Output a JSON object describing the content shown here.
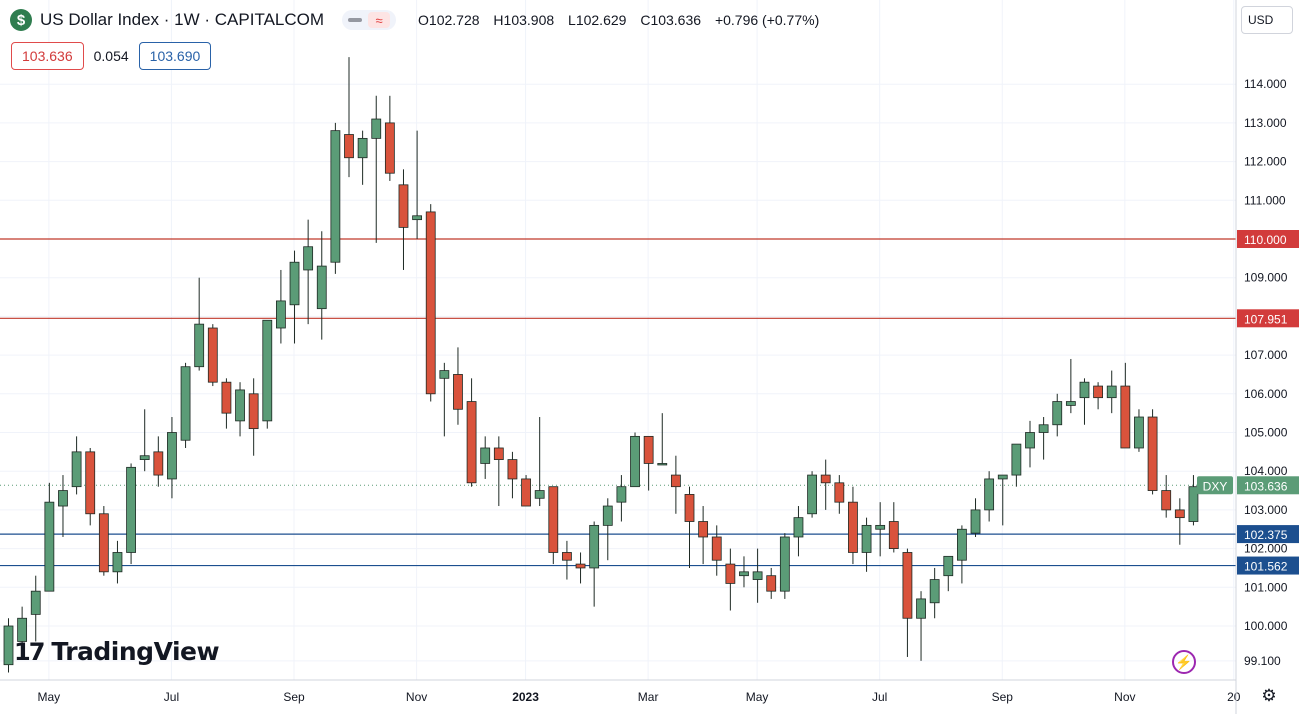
{
  "header": {
    "badge": "$",
    "title": "US Dollar Index · 1W · CAPITALCOM",
    "pill_wave": "≈",
    "ohlc": {
      "o": "O102.728",
      "h": "H103.908",
      "l": "L102.629",
      "c": "C103.636",
      "chg": "+0.796 (+0.77%)"
    }
  },
  "subheader": {
    "sell": "103.636",
    "spread": "0.054",
    "buy": "103.690"
  },
  "scale_currency": "USD",
  "logo": {
    "mark": "17",
    "name": "TradingView"
  },
  "colors": {
    "up": "#5b9c77",
    "down": "#d9533c",
    "red_line": "#c0392b",
    "blue_line": "#1c4f8f",
    "current": "#5b9c77"
  },
  "icons": {
    "bolt": "⚡",
    "gear": "⚙"
  },
  "chart_data": {
    "type": "candlestick",
    "title": "",
    "xlabel": "",
    "ylabel": "",
    "ylim": [
      98.8,
      115.1
    ],
    "y_ticks": [
      "99.100",
      "100.000",
      "101.000",
      "102.000",
      "103.000",
      "104.000",
      "105.000",
      "106.000",
      "107.000",
      "108.000",
      "109.000",
      "110.000",
      "111.000",
      "112.000",
      "113.000",
      "114.000"
    ],
    "x_ticks": [
      {
        "label": "May",
        "index": 3
      },
      {
        "label": "Jul",
        "index": 12
      },
      {
        "label": "Sep",
        "index": 21
      },
      {
        "label": "Nov",
        "index": 30
      },
      {
        "label": "2023",
        "index": 38,
        "bold": true
      },
      {
        "label": "Mar",
        "index": 47
      },
      {
        "label": "May",
        "index": 55
      },
      {
        "label": "Jul",
        "index": 64
      },
      {
        "label": "Sep",
        "index": 73
      },
      {
        "label": "Nov",
        "index": 82
      },
      {
        "label": "20",
        "index": 90
      }
    ],
    "candles": [
      {
        "o": 99.0,
        "h": 100.2,
        "l": 98.8,
        "c": 100.0
      },
      {
        "o": 99.6,
        "h": 100.5,
        "l": 99.2,
        "c": 100.2
      },
      {
        "o": 100.3,
        "h": 101.3,
        "l": 99.6,
        "c": 100.9
      },
      {
        "o": 100.9,
        "h": 103.7,
        "l": 100.9,
        "c": 103.2
      },
      {
        "o": 103.1,
        "h": 103.9,
        "l": 102.3,
        "c": 103.5
      },
      {
        "o": 103.6,
        "h": 104.9,
        "l": 103.4,
        "c": 104.5
      },
      {
        "o": 104.5,
        "h": 104.6,
        "l": 102.6,
        "c": 102.9
      },
      {
        "o": 102.9,
        "h": 103.1,
        "l": 101.3,
        "c": 101.4
      },
      {
        "o": 101.4,
        "h": 102.2,
        "l": 101.1,
        "c": 101.9
      },
      {
        "o": 101.9,
        "h": 104.2,
        "l": 101.6,
        "c": 104.1
      },
      {
        "o": 104.3,
        "h": 105.6,
        "l": 104.0,
        "c": 104.4
      },
      {
        "o": 104.5,
        "h": 104.9,
        "l": 103.6,
        "c": 103.9
      },
      {
        "o": 103.8,
        "h": 105.4,
        "l": 103.3,
        "c": 105.0
      },
      {
        "o": 104.8,
        "h": 106.8,
        "l": 104.6,
        "c": 106.7
      },
      {
        "o": 106.7,
        "h": 109.0,
        "l": 106.6,
        "c": 107.8
      },
      {
        "o": 107.7,
        "h": 107.8,
        "l": 106.2,
        "c": 106.3
      },
      {
        "o": 106.3,
        "h": 106.4,
        "l": 105.1,
        "c": 105.5
      },
      {
        "o": 105.3,
        "h": 106.3,
        "l": 104.9,
        "c": 106.1
      },
      {
        "o": 106.0,
        "h": 106.4,
        "l": 104.4,
        "c": 105.1
      },
      {
        "o": 105.3,
        "h": 107.9,
        "l": 105.1,
        "c": 107.9
      },
      {
        "o": 107.7,
        "h": 109.2,
        "l": 107.3,
        "c": 108.4
      },
      {
        "o": 108.3,
        "h": 109.7,
        "l": 107.3,
        "c": 109.4
      },
      {
        "o": 109.2,
        "h": 110.5,
        "l": 107.8,
        "c": 109.8
      },
      {
        "o": 108.2,
        "h": 110.2,
        "l": 107.4,
        "c": 109.3
      },
      {
        "o": 109.4,
        "h": 113.0,
        "l": 109.1,
        "c": 112.8
      },
      {
        "o": 112.7,
        "h": 114.7,
        "l": 111.6,
        "c": 112.1
      },
      {
        "o": 112.1,
        "h": 112.8,
        "l": 111.4,
        "c": 112.6
      },
      {
        "o": 112.6,
        "h": 113.7,
        "l": 109.9,
        "c": 113.1
      },
      {
        "o": 113.0,
        "h": 113.7,
        "l": 111.5,
        "c": 111.7
      },
      {
        "o": 111.4,
        "h": 111.8,
        "l": 109.2,
        "c": 110.3
      },
      {
        "o": 110.5,
        "h": 112.8,
        "l": 110.0,
        "c": 110.6
      },
      {
        "o": 110.7,
        "h": 110.9,
        "l": 105.8,
        "c": 106.0
      },
      {
        "o": 106.4,
        "h": 106.8,
        "l": 104.9,
        "c": 106.6
      },
      {
        "o": 106.5,
        "h": 107.2,
        "l": 105.2,
        "c": 105.6
      },
      {
        "o": 105.8,
        "h": 106.4,
        "l": 103.6,
        "c": 103.7
      },
      {
        "o": 104.2,
        "h": 104.9,
        "l": 103.8,
        "c": 104.6
      },
      {
        "o": 104.6,
        "h": 104.9,
        "l": 103.1,
        "c": 104.3
      },
      {
        "o": 104.3,
        "h": 104.5,
        "l": 103.3,
        "c": 103.8
      },
      {
        "o": 103.8,
        "h": 103.9,
        "l": 103.1,
        "c": 103.1
      },
      {
        "o": 103.3,
        "h": 105.4,
        "l": 103.1,
        "c": 103.5
      },
      {
        "o": 103.6,
        "h": 103.6,
        "l": 101.6,
        "c": 101.9
      },
      {
        "o": 101.9,
        "h": 102.2,
        "l": 101.2,
        "c": 101.7
      },
      {
        "o": 101.6,
        "h": 101.9,
        "l": 101.1,
        "c": 101.5
      },
      {
        "o": 101.5,
        "h": 102.7,
        "l": 100.5,
        "c": 102.6
      },
      {
        "o": 102.6,
        "h": 103.3,
        "l": 101.7,
        "c": 103.1
      },
      {
        "o": 103.2,
        "h": 103.9,
        "l": 102.7,
        "c": 103.6
      },
      {
        "o": 103.6,
        "h": 105.0,
        "l": 103.6,
        "c": 104.9
      },
      {
        "o": 104.9,
        "h": 104.9,
        "l": 103.5,
        "c": 104.2
      },
      {
        "o": 104.2,
        "h": 105.5,
        "l": 104.2,
        "c": 104.2
      },
      {
        "o": 103.9,
        "h": 104.4,
        "l": 102.9,
        "c": 103.6
      },
      {
        "o": 103.4,
        "h": 103.6,
        "l": 101.5,
        "c": 102.7
      },
      {
        "o": 102.7,
        "h": 103.1,
        "l": 101.6,
        "c": 102.3
      },
      {
        "o": 102.3,
        "h": 102.6,
        "l": 101.3,
        "c": 101.7
      },
      {
        "o": 101.6,
        "h": 102.0,
        "l": 100.4,
        "c": 101.1
      },
      {
        "o": 101.3,
        "h": 101.8,
        "l": 101.0,
        "c": 101.4
      },
      {
        "o": 101.2,
        "h": 102.0,
        "l": 100.6,
        "c": 101.4
      },
      {
        "o": 101.3,
        "h": 101.5,
        "l": 100.7,
        "c": 100.9
      },
      {
        "o": 100.9,
        "h": 102.4,
        "l": 100.7,
        "c": 102.3
      },
      {
        "o": 102.3,
        "h": 103.1,
        "l": 101.8,
        "c": 102.8
      },
      {
        "o": 102.9,
        "h": 104.0,
        "l": 102.8,
        "c": 103.9
      },
      {
        "o": 103.9,
        "h": 104.3,
        "l": 103.0,
        "c": 103.7
      },
      {
        "o": 103.7,
        "h": 103.9,
        "l": 102.9,
        "c": 103.2
      },
      {
        "o": 103.2,
        "h": 103.6,
        "l": 101.6,
        "c": 101.9
      },
      {
        "o": 101.9,
        "h": 102.8,
        "l": 101.4,
        "c": 102.6
      },
      {
        "o": 102.5,
        "h": 103.2,
        "l": 101.8,
        "c": 102.6
      },
      {
        "o": 102.7,
        "h": 103.2,
        "l": 101.9,
        "c": 102.0
      },
      {
        "o": 101.9,
        "h": 102.0,
        "l": 99.2,
        "c": 100.2
      },
      {
        "o": 100.2,
        "h": 100.9,
        "l": 99.1,
        "c": 100.7
      },
      {
        "o": 100.6,
        "h": 101.5,
        "l": 100.2,
        "c": 101.2
      },
      {
        "o": 101.3,
        "h": 101.8,
        "l": 100.9,
        "c": 101.8
      },
      {
        "o": 101.7,
        "h": 102.6,
        "l": 101.1,
        "c": 102.5
      },
      {
        "o": 102.4,
        "h": 103.3,
        "l": 102.3,
        "c": 103.0
      },
      {
        "o": 103.0,
        "h": 104.0,
        "l": 102.7,
        "c": 103.8
      },
      {
        "o": 103.8,
        "h": 103.9,
        "l": 102.6,
        "c": 103.9
      },
      {
        "o": 103.9,
        "h": 104.7,
        "l": 103.6,
        "c": 104.7
      },
      {
        "o": 104.6,
        "h": 105.3,
        "l": 104.1,
        "c": 105.0
      },
      {
        "o": 105.0,
        "h": 105.4,
        "l": 104.3,
        "c": 105.2
      },
      {
        "o": 105.2,
        "h": 106.0,
        "l": 104.9,
        "c": 105.8
      },
      {
        "o": 105.7,
        "h": 106.9,
        "l": 105.5,
        "c": 105.8
      },
      {
        "o": 105.9,
        "h": 106.4,
        "l": 105.2,
        "c": 106.3
      },
      {
        "o": 106.2,
        "h": 106.3,
        "l": 105.6,
        "c": 105.9
      },
      {
        "o": 105.9,
        "h": 106.6,
        "l": 105.5,
        "c": 106.2
      },
      {
        "o": 106.2,
        "h": 106.8,
        "l": 104.6,
        "c": 104.6
      },
      {
        "o": 104.6,
        "h": 105.6,
        "l": 104.5,
        "c": 105.4
      },
      {
        "o": 105.4,
        "h": 105.6,
        "l": 103.4,
        "c": 103.5
      },
      {
        "o": 103.5,
        "h": 103.9,
        "l": 102.8,
        "c": 103.0
      },
      {
        "o": 103.0,
        "h": 103.3,
        "l": 102.1,
        "c": 102.8
      },
      {
        "o": 102.7,
        "h": 103.9,
        "l": 102.6,
        "c": 103.6
      }
    ],
    "hlines": [
      {
        "value": 110.0,
        "label": "110.000",
        "color": "#c0392b",
        "label_bg": "#d23b3b"
      },
      {
        "value": 107.951,
        "label": "107.951",
        "color": "#c0392b",
        "label_bg": "#d23b3b"
      },
      {
        "value": 102.375,
        "label": "102.375",
        "color": "#1c4f8f",
        "label_bg": "#1c4f8f"
      },
      {
        "value": 101.562,
        "label": "101.562",
        "color": "#1c4f8f",
        "label_bg": "#1c4f8f"
      }
    ],
    "current": {
      "value": 103.636,
      "label": "103.636",
      "tag": "DXY"
    },
    "grid": true
  }
}
